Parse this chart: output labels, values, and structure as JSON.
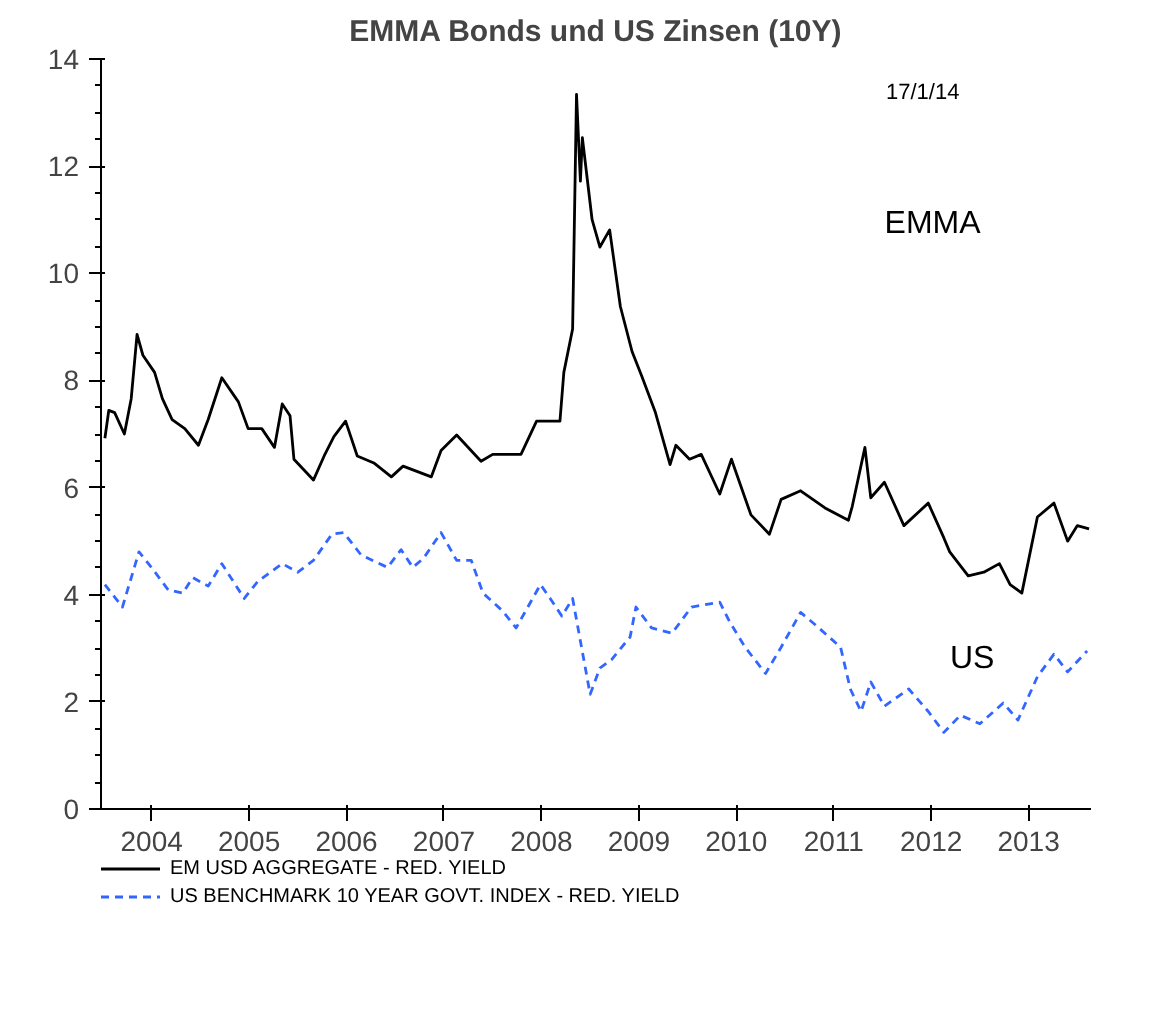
{
  "chart_data": {
    "type": "line",
    "title": "EMMA Bonds und US Zinsen (10Y)",
    "x": [
      2004.02,
      2004.06,
      2004.12,
      2004.22,
      2004.29,
      2004.35,
      2004.41,
      2004.53,
      2004.61,
      2004.71,
      2004.84,
      2004.98,
      2005.08,
      2005.22,
      2005.39,
      2005.49,
      2005.63,
      2005.76,
      2005.84,
      2005.92,
      2005.96,
      2006.16,
      2006.27,
      2006.37,
      2006.49,
      2006.61,
      2006.78,
      2006.96,
      2007.08,
      2007.37,
      2007.47,
      2007.63,
      2007.88,
      2008.0,
      2008.29,
      2008.45,
      2008.69,
      2008.73,
      2008.82,
      2008.86,
      2008.9,
      2008.92,
      2009.02,
      2009.1,
      2009.2,
      2009.31,
      2009.43,
      2009.53,
      2009.67,
      2009.82,
      2009.88,
      2010.02,
      2010.14,
      2010.33,
      2010.45,
      2010.65,
      2010.84,
      2010.96,
      2011.16,
      2011.41,
      2011.65,
      2011.69,
      2011.82,
      2011.88,
      2012.02,
      2012.22,
      2012.47,
      2012.63,
      2012.69,
      2012.88,
      2013.04,
      2013.2,
      2013.31,
      2013.43,
      2013.59,
      2013.76,
      2013.9,
      2014.0,
      2014.12
    ],
    "series": [
      {
        "name": "EM USD AGGREGATE - RED. YIELD",
        "color": "#000000",
        "line_style": "solid",
        "values": [
          6.92,
          7.44,
          7.4,
          7.0,
          7.66,
          8.86,
          8.47,
          8.15,
          7.66,
          7.27,
          7.1,
          6.79,
          7.27,
          8.05,
          7.6,
          7.1,
          7.1,
          6.75,
          7.56,
          7.34,
          6.53,
          6.14,
          6.59,
          6.95,
          7.24,
          6.59,
          6.46,
          6.2,
          6.4,
          6.2,
          6.69,
          6.98,
          6.49,
          6.62,
          6.62,
          7.24,
          7.24,
          8.15,
          8.96,
          13.34,
          11.72,
          12.53,
          11.0,
          10.49,
          10.81,
          9.38,
          8.54,
          8.08,
          7.4,
          6.43,
          6.79,
          6.53,
          6.62,
          5.88,
          6.53,
          5.49,
          5.13,
          5.78,
          5.94,
          5.62,
          5.39,
          5.65,
          6.75,
          5.81,
          6.1,
          5.29,
          5.71,
          5.06,
          4.8,
          4.35,
          4.42,
          4.58,
          4.19,
          4.03,
          5.45,
          5.71,
          5.0,
          5.29,
          5.23
        ]
      },
      {
        "name": "US BENCHMARK 10 YEAR GOVT. INDEX - RED. YIELD",
        "color": "#3366ff",
        "line_style": "dashed",
        "x": [
          2004.02,
          2004.2,
          2004.37,
          2004.51,
          2004.67,
          2004.82,
          2004.92,
          2005.08,
          2005.22,
          2005.45,
          2005.59,
          2005.84,
          2006.0,
          2006.16,
          2006.35,
          2006.47,
          2006.65,
          2006.92,
          2007.06,
          2007.18,
          2007.29,
          2007.47,
          2007.63,
          2007.78,
          2007.9,
          2008.1,
          2008.24,
          2008.49,
          2008.59,
          2008.71,
          2008.82,
          2009.0,
          2009.1,
          2009.22,
          2009.41,
          2009.47,
          2009.63,
          2009.84,
          2010.04,
          2010.33,
          2010.43,
          2010.59,
          2010.8,
          2010.96,
          2011.16,
          2011.31,
          2011.57,
          2011.67,
          2011.78,
          2011.88,
          2012.02,
          2012.27,
          2012.47,
          2012.63,
          2012.8,
          2013.0,
          2013.24,
          2013.39,
          2013.59,
          2013.76,
          2013.9,
          2014.1
        ],
        "values": [
          4.19,
          3.77,
          4.8,
          4.48,
          4.09,
          4.03,
          4.32,
          4.16,
          4.58,
          3.93,
          4.25,
          4.58,
          4.42,
          4.64,
          5.13,
          5.16,
          4.74,
          4.51,
          4.84,
          4.51,
          4.68,
          5.16,
          4.64,
          4.64,
          4.03,
          3.7,
          3.38,
          4.19,
          3.93,
          3.6,
          3.93,
          2.14,
          2.63,
          2.79,
          3.21,
          3.77,
          3.38,
          3.28,
          3.77,
          3.86,
          3.5,
          3.02,
          2.53,
          3.02,
          3.67,
          3.44,
          3.02,
          2.24,
          1.82,
          2.37,
          1.92,
          2.24,
          1.82,
          1.43,
          1.75,
          1.59,
          1.98,
          1.66,
          2.47,
          2.89,
          2.56,
          2.95
        ]
      }
    ],
    "xlim": [
      2003.98,
      2014.14
    ],
    "xticks": [
      {
        "value": 2004.5,
        "label": "2004"
      },
      {
        "value": 2005.5,
        "label": "2005"
      },
      {
        "value": 2006.5,
        "label": "2006"
      },
      {
        "value": 2007.5,
        "label": "2007"
      },
      {
        "value": 2008.5,
        "label": "2008"
      },
      {
        "value": 2009.5,
        "label": "2009"
      },
      {
        "value": 2010.5,
        "label": "2010"
      },
      {
        "value": 2011.5,
        "label": "2011"
      },
      {
        "value": 2012.5,
        "label": "2012"
      },
      {
        "value": 2013.5,
        "label": "2013"
      }
    ],
    "ylim": [
      0,
      14
    ],
    "yticks": [
      0,
      2,
      4,
      6,
      8,
      10,
      12,
      14
    ],
    "grid": false,
    "legend": "bottom",
    "marker": "none",
    "annotations": [
      "17/1/14",
      "EMMA",
      "US"
    ]
  }
}
